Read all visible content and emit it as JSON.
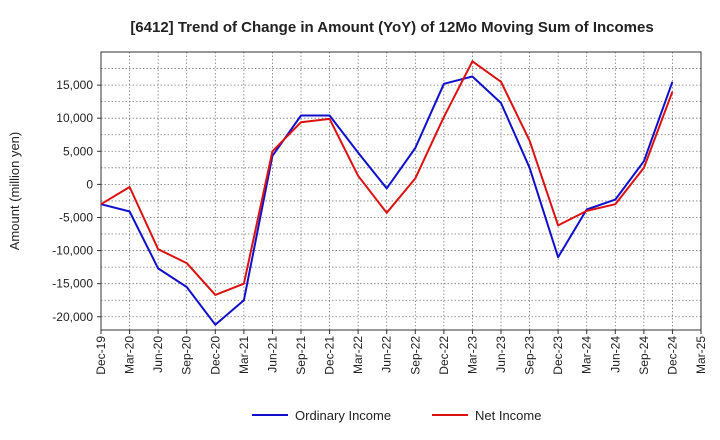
{
  "chart_data": {
    "type": "line",
    "title": "[6412]  Trend of Change in Amount (YoY) of 12Mo Moving Sum of Incomes",
    "ylabel": "Amount (million yen)",
    "xlabel": "",
    "categories": [
      "Dec-19",
      "Mar-20",
      "Jun-20",
      "Sep-20",
      "Dec-20",
      "Mar-21",
      "Jun-21",
      "Sep-21",
      "Dec-21",
      "Mar-22",
      "Jun-22",
      "Sep-22",
      "Dec-22",
      "Mar-23",
      "Jun-23",
      "Sep-23",
      "Dec-23",
      "Mar-24",
      "Jun-24",
      "Sep-24",
      "Dec-24",
      "Mar-25"
    ],
    "ylim": [
      -22000,
      20000
    ],
    "yticks": [
      -20000,
      -15000,
      -10000,
      -5000,
      0,
      5000,
      10000,
      15000
    ],
    "ytick_labels": [
      "-20,000",
      "-15,000",
      "-10,000",
      "-5,000",
      "0",
      "5,000",
      "10,000",
      "15,000"
    ],
    "grid": true,
    "legend_position": "bottom",
    "series": [
      {
        "name": "Ordinary Income",
        "color": "#1010cc",
        "values": [
          -3000,
          -4100,
          -12700,
          -15500,
          -21200,
          -17500,
          4300,
          10400,
          10400,
          4800,
          -600,
          5500,
          15200,
          16300,
          12300,
          2500,
          -11000,
          -3800,
          -2300,
          3500,
          15500,
          null
        ]
      },
      {
        "name": "Net Income",
        "color": "#dd1111",
        "values": [
          -3000,
          -400,
          -9800,
          -11900,
          -16700,
          -15000,
          5000,
          9400,
          9900,
          1300,
          -4300,
          900,
          10200,
          18600,
          15500,
          6600,
          -6200,
          -4000,
          -3000,
          2500,
          14000,
          null
        ]
      }
    ]
  }
}
